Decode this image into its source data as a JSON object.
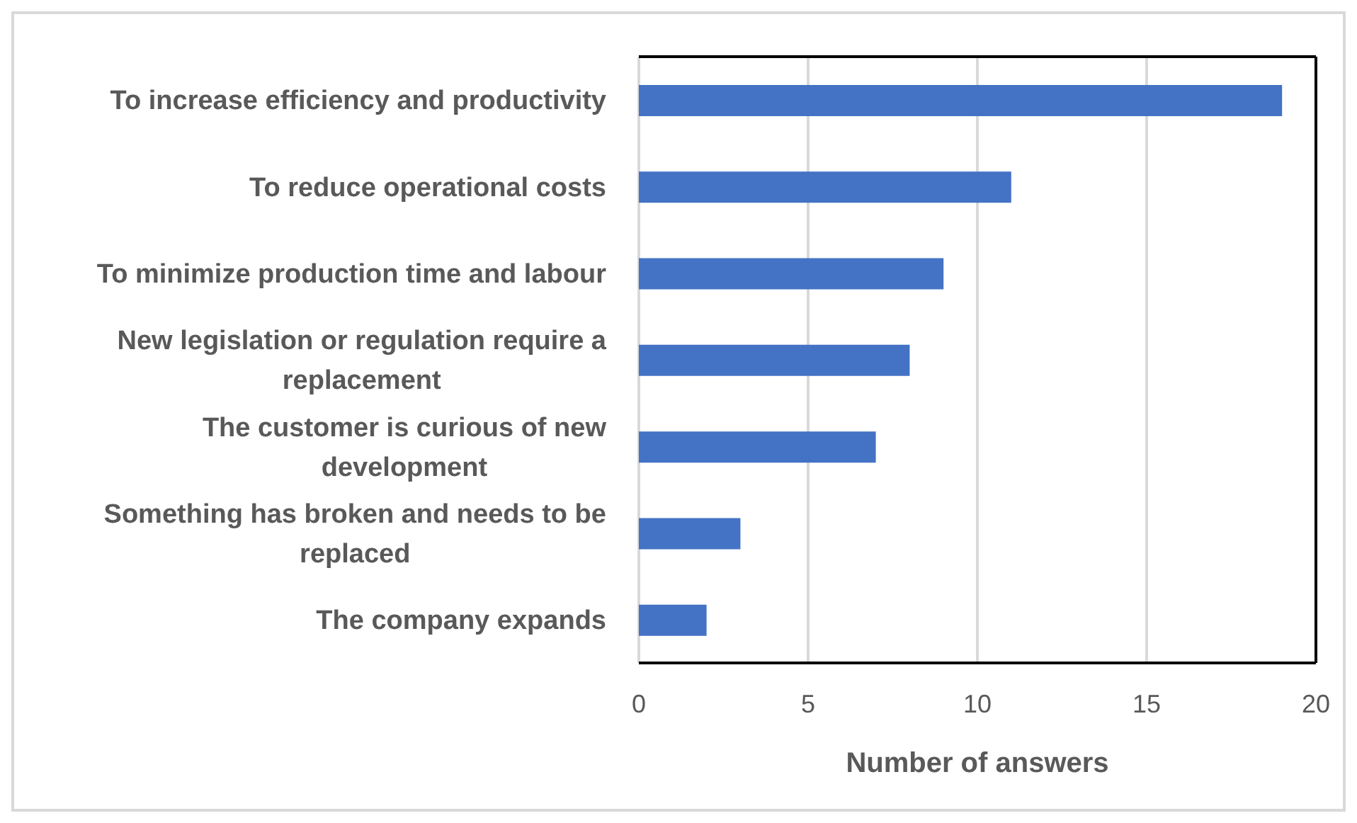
{
  "chart_data": {
    "type": "bar",
    "orientation": "horizontal",
    "categories": [
      "To increase efficiency and productivity",
      "To reduce operational costs",
      "To minimize production time and labour",
      "New legislation or regulation require a replacement",
      "The customer is curious of new development",
      "Something has broken and needs to be replaced",
      "The company expands"
    ],
    "values": [
      19,
      11,
      9,
      8,
      7,
      3,
      2
    ],
    "color": "#4472c4",
    "xlabel": "Number of answers",
    "xlim": [
      0,
      20
    ],
    "xticks": [
      0,
      5,
      10,
      15,
      20
    ],
    "grid": "x"
  }
}
